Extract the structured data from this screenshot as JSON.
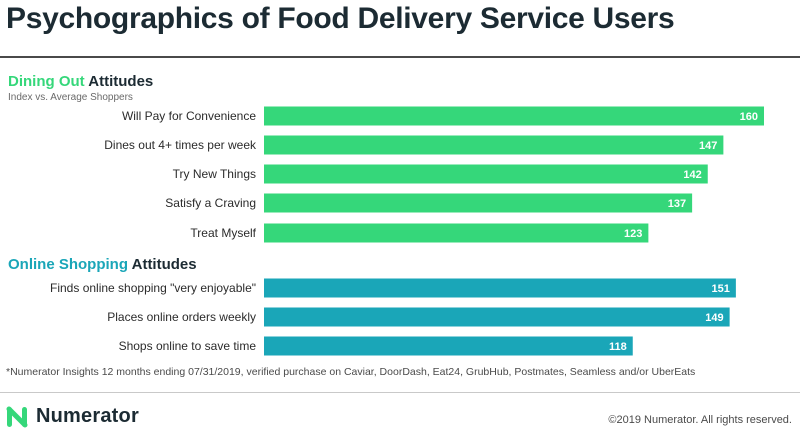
{
  "title": "Psychographics of Food Delivery Service Users",
  "sections": [
    {
      "accent": "Dining Out",
      "rest": " Attitudes",
      "subtitle": "Index vs. Average Shoppers"
    },
    {
      "accent": "Online Shopping",
      "rest": " Attitudes"
    }
  ],
  "colors": {
    "dining": "#35d77a",
    "online": "#1aa6b8"
  },
  "chart_data": {
    "type": "bar",
    "orientation": "horizontal",
    "categories": [
      "Will Pay for Convenience",
      "Dines out 4+ times per week",
      "Try New Things",
      "Satisfy a Craving",
      "Treat Myself",
      "Finds online shopping \"very enjoyable\"",
      "Places online orders weekly",
      "Shops online to save time"
    ],
    "values": [
      160,
      147,
      142,
      137,
      123,
      151,
      149,
      118
    ],
    "groups": [
      "Dining Out",
      "Dining Out",
      "Dining Out",
      "Dining Out",
      "Dining Out",
      "Online Shopping",
      "Online Shopping",
      "Online Shopping"
    ],
    "data_labels": true
  },
  "footnote": "*Numerator Insights 12 months ending 07/31/2019, verified purchase on Caviar, DoorDash, Eat24, GrubHub, Postmates, Seamless and/or UberEats",
  "brand": {
    "name": "Numerator",
    "logo_icon": "numerator-n-icon"
  },
  "copyright": "©2019 Numerator. All rights reserved."
}
